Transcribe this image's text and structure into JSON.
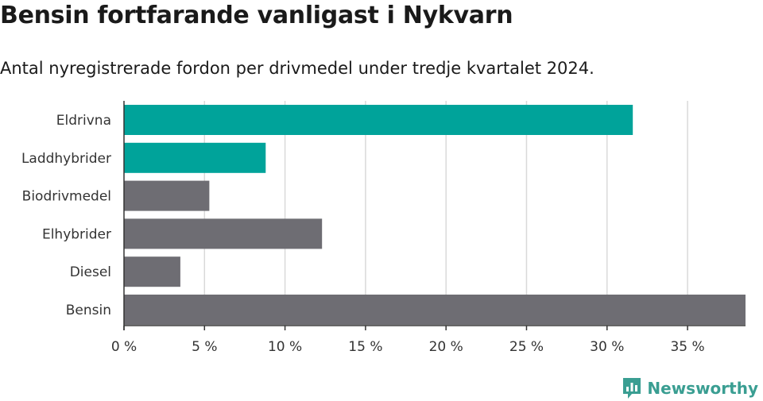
{
  "header": {
    "title": "Bensin fortfarande vanligast i Nykvarn",
    "subtitle": "Antal nyregistrerade fordon per drivmedel under tredje kvartalet 2024."
  },
  "brand": {
    "name": "Newsworthy",
    "icon": "newsworthy-logo-icon",
    "color": "#3a9e92"
  },
  "colors": {
    "highlight": "#00a39a",
    "default": "#6e6d73",
    "grid": "#d9d9d9",
    "axis": "#333333"
  },
  "chart_data": {
    "type": "bar",
    "orientation": "horizontal",
    "title": "Bensin fortfarande vanligast i Nykvarn",
    "subtitle": "Antal nyregistrerade fordon per drivmedel under tredje kvartalet 2024.",
    "categories": [
      "Eldrivna",
      "Laddhybrider",
      "Biodrivmedel",
      "Elhybrider",
      "Diesel",
      "Bensin"
    ],
    "values": [
      31.6,
      8.8,
      5.3,
      12.3,
      3.5,
      38.6
    ],
    "highlighted": [
      true,
      true,
      false,
      false,
      false,
      false
    ],
    "xlim": [
      0,
      38.6
    ],
    "xticks": [
      0,
      5,
      10,
      15,
      20,
      25,
      30,
      35
    ],
    "xtick_labels": [
      "0 %",
      "5 %",
      "10 %",
      "15 %",
      "20 %",
      "25 %",
      "30 %",
      "35 %"
    ],
    "grid": true,
    "xlabel": "",
    "ylabel": ""
  }
}
